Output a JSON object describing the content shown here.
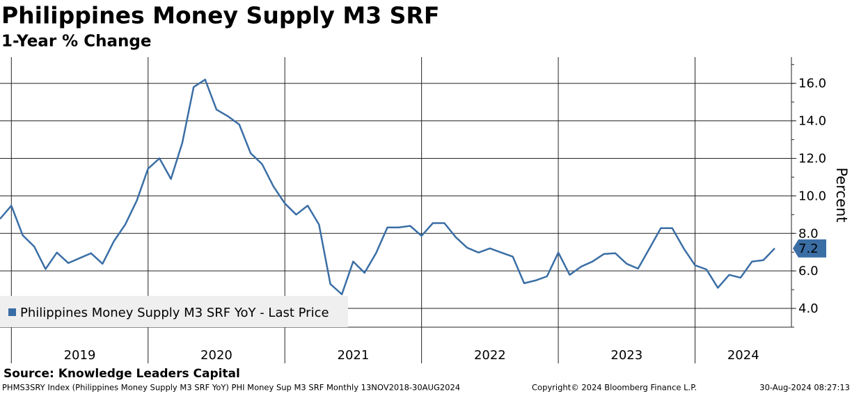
{
  "chart_data": {
    "type": "line",
    "title": "Philippines Money Supply M3 SRF",
    "subtitle": "1-Year % Change",
    "y_label": "Percent",
    "source": "Source: Knowledge Leaders Capital",
    "footer_left": "PHMS3SRY Index (Philippines Money Supply M3 SRF YoY) PHI Money Sup M3 SRF  Monthly 13NOV2018-30AUG2024",
    "footer_center": "Copyright© 2024 Bloomberg Finance L.P.",
    "footer_right": "30-Aug-2024 08:27:13",
    "legend": "bottom-left",
    "grid": true,
    "x": [
      2018.917,
      2019.0,
      2019.083,
      2019.167,
      2019.25,
      2019.333,
      2019.417,
      2019.5,
      2019.583,
      2019.667,
      2019.75,
      2019.833,
      2019.917,
      2020.0,
      2020.083,
      2020.167,
      2020.25,
      2020.333,
      2020.417,
      2020.5,
      2020.583,
      2020.667,
      2020.75,
      2020.833,
      2020.917,
      2021.0,
      2021.083,
      2021.167,
      2021.25,
      2021.333,
      2021.417,
      2021.5,
      2021.583,
      2021.667,
      2021.75,
      2021.833,
      2021.917,
      2022.0,
      2022.083,
      2022.167,
      2022.25,
      2022.333,
      2022.417,
      2022.5,
      2022.583,
      2022.667,
      2022.75,
      2022.833,
      2022.917,
      2023.0,
      2023.083,
      2023.167,
      2023.25,
      2023.333,
      2023.417,
      2023.5,
      2023.583,
      2023.667,
      2023.75,
      2023.833,
      2023.917,
      2024.0,
      2024.083,
      2024.167,
      2024.25,
      2024.333,
      2024.417,
      2024.5,
      2024.583
    ],
    "series": [
      {
        "name": "Philippines Money Supply M3 SRF YoY - Last Price",
        "color": "#3a6ea5",
        "values": [
          8.77,
          9.48,
          7.9,
          7.3,
          6.1,
          6.98,
          6.42,
          6.68,
          6.94,
          6.38,
          7.58,
          8.47,
          9.74,
          11.45,
          12.0,
          10.9,
          12.83,
          15.8,
          16.2,
          14.6,
          14.25,
          13.8,
          12.27,
          11.7,
          10.5,
          9.6,
          9.0,
          9.48,
          8.47,
          5.3,
          4.75,
          6.5,
          5.9,
          6.94,
          8.32,
          8.32,
          8.4,
          7.87,
          8.55,
          8.55,
          7.8,
          7.24,
          6.98,
          7.2,
          6.98,
          6.76,
          5.34,
          5.49,
          5.71,
          6.98,
          5.79,
          6.23,
          6.5,
          6.9,
          6.94,
          6.38,
          6.12,
          7.2,
          8.28,
          8.28,
          7.2,
          6.3,
          6.08,
          5.1,
          5.79,
          5.64,
          6.5,
          6.57,
          7.2
        ],
        "last_value_label": "7.2"
      }
    ],
    "xlim": [
      2018.917,
      2024.705
    ],
    "xticks": [
      {
        "value": 2019,
        "label": "2019"
      },
      {
        "value": 2020,
        "label": "2020"
      },
      {
        "value": 2021,
        "label": "2021"
      },
      {
        "value": 2022,
        "label": "2022"
      },
      {
        "value": 2023,
        "label": "2023"
      },
      {
        "value": 2024,
        "label": "2024"
      }
    ],
    "ylim": [
      3,
      17.4
    ],
    "yticks": [
      {
        "value": 4,
        "label": "4.0"
      },
      {
        "value": 6,
        "label": "6.0"
      },
      {
        "value": 8,
        "label": "8.0"
      },
      {
        "value": 10,
        "label": "10.0"
      },
      {
        "value": 12,
        "label": "12.0"
      },
      {
        "value": 14,
        "label": "14.0"
      },
      {
        "value": 16,
        "label": "16.0"
      }
    ]
  }
}
